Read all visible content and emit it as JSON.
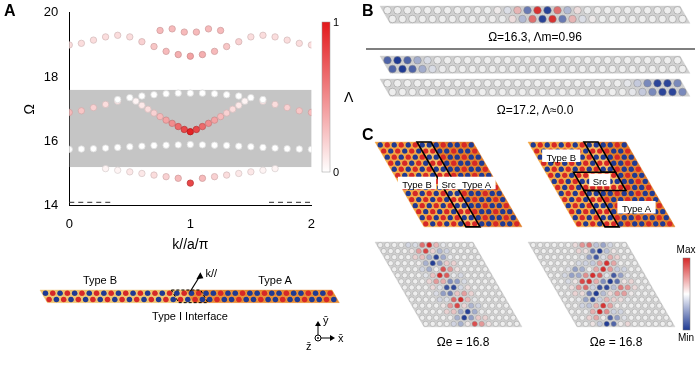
{
  "chart_data": {
    "type": "scatter",
    "panel_label": "A",
    "x_label": "k//a/π",
    "y_label": "Ω",
    "xlim": [
      0,
      2
    ],
    "xticks": [
      0,
      1,
      2
    ],
    "ylim": [
      14,
      20
    ],
    "yticks": [
      14,
      16,
      18,
      20
    ],
    "grid": false,
    "band": [
      15.2,
      17.6
    ],
    "colorbar": {
      "label": "Λ",
      "range": [
        0,
        1
      ],
      "ticks": [
        0,
        1
      ],
      "colors": [
        "#ffffff",
        "#e3191c"
      ]
    },
    "series": [
      {
        "marker": "circle",
        "x": [
          0,
          0.1,
          0.2,
          0.3,
          0.4,
          0.5,
          0.6,
          0.7,
          0.8,
          0.9,
          1.0,
          1.1,
          1.2,
          1.3,
          1.4,
          1.5,
          1.6,
          1.7,
          1.8,
          1.9,
          2.0
        ],
        "y": [
          15.75,
          15.76,
          15.77,
          15.79,
          15.81,
          15.83,
          15.85,
          15.87,
          15.88,
          15.89,
          15.9,
          15.89,
          15.88,
          15.87,
          15.85,
          15.83,
          15.81,
          15.79,
          15.77,
          15.76,
          15.75
        ],
        "lambda": [
          0,
          0,
          0,
          0,
          0,
          0,
          0,
          0,
          0,
          0,
          0,
          0,
          0,
          0,
          0,
          0,
          0,
          0,
          0,
          0,
          0
        ]
      },
      {
        "marker": "circle",
        "x": [
          0.4,
          0.5,
          0.6,
          0.7,
          0.8,
          0.9,
          1.0,
          1.1,
          1.2,
          1.3,
          1.4,
          1.5,
          1.6
        ],
        "y": [
          17.3,
          17.36,
          17.41,
          17.45,
          17.48,
          17.5,
          17.5,
          17.5,
          17.48,
          17.45,
          17.41,
          17.36,
          17.3
        ],
        "lambda": [
          0,
          0,
          0,
          0,
          0,
          0,
          0,
          0,
          0,
          0,
          0,
          0,
          0
        ]
      },
      {
        "marker": "circle",
        "x": [
          0,
          0.1,
          0.2,
          0.3,
          0.4,
          1.6,
          1.7,
          1.8,
          1.9,
          2.0
        ],
        "y": [
          16.9,
          16.95,
          17.05,
          17.15,
          17.25,
          17.25,
          17.15,
          17.05,
          16.95,
          16.9
        ],
        "lambda": [
          0.3,
          0.25,
          0.2,
          0.15,
          0.1,
          0.1,
          0.15,
          0.2,
          0.25,
          0.3
        ]
      },
      {
        "marker": "circle",
        "x": [
          0,
          0.1,
          0.2,
          0.3,
          0.4,
          0.5,
          0.6,
          0.7,
          0.8,
          0.9,
          1.0,
          1.1,
          1.2,
          1.3,
          1.4,
          1.5,
          1.6,
          1.7,
          1.8,
          1.9,
          2.0
        ],
        "y": [
          19.0,
          19.05,
          19.15,
          19.25,
          19.3,
          19.25,
          19.1,
          18.95,
          18.8,
          18.7,
          18.65,
          18.7,
          18.8,
          18.95,
          19.1,
          19.25,
          19.3,
          19.25,
          19.15,
          19.05,
          19.0
        ],
        "lambda": [
          0.15,
          0.15,
          0.15,
          0.15,
          0.15,
          0.15,
          0.2,
          0.25,
          0.3,
          0.35,
          0.4,
          0.35,
          0.3,
          0.25,
          0.2,
          0.15,
          0.15,
          0.15,
          0.15,
          0.15,
          0.15
        ]
      },
      {
        "marker": "circle",
        "x": [
          0.75,
          0.85,
          0.95,
          1.05,
          1.15,
          1.25
        ],
        "y": [
          19.45,
          19.5,
          19.4,
          19.4,
          19.5,
          19.45
        ],
        "lambda": [
          0.3,
          0.3,
          0.3,
          0.3,
          0.3,
          0.3
        ]
      },
      {
        "marker": "circle",
        "x": [
          0.3,
          0.4,
          0.5,
          0.6,
          0.7,
          0.8,
          0.9,
          1.0,
          1.1,
          1.2,
          1.3,
          1.4,
          1.5,
          1.6,
          1.7
        ],
        "y": [
          15.15,
          15.1,
          15.05,
          15.0,
          14.95,
          14.9,
          14.85,
          14.7,
          14.85,
          14.9,
          14.95,
          15.0,
          15.05,
          15.1,
          15.15
        ],
        "lambda": [
          0.05,
          0.05,
          0.1,
          0.1,
          0.15,
          0.2,
          0.3,
          0.8,
          0.3,
          0.2,
          0.15,
          0.1,
          0.1,
          0.05,
          0.05
        ]
      },
      {
        "marker": "circle",
        "x": [
          0.55,
          0.6,
          0.65,
          0.7,
          0.75,
          0.8,
          0.85,
          0.9,
          0.95,
          1.0,
          1.05,
          1.1,
          1.15,
          1.2,
          1.25,
          1.3,
          1.35,
          1.4,
          1.45
        ],
        "y": [
          17.25,
          17.12,
          17.0,
          16.88,
          16.77,
          16.66,
          16.56,
          16.46,
          16.37,
          16.3,
          16.37,
          16.46,
          16.56,
          16.66,
          16.77,
          16.88,
          17.0,
          17.12,
          17.25
        ],
        "lambda": [
          0.05,
          0.1,
          0.15,
          0.2,
          0.3,
          0.4,
          0.5,
          0.65,
          0.8,
          0.96,
          0.8,
          0.65,
          0.5,
          0.4,
          0.3,
          0.2,
          0.15,
          0.1,
          0.05
        ]
      },
      {
        "type": "line",
        "line_style": "dashed",
        "color": "#555555",
        "x": [
          0,
          0.35,
          1.0,
          1.65,
          2.0
        ],
        "y": [
          14.1,
          14.1,
          null,
          14.1,
          14.1
        ]
      }
    ]
  },
  "figure": {
    "schematic": {
      "labels": {
        "left": "Type B",
        "right": "Type A",
        "interface": "Type I Interface"
      },
      "k_label": "k//",
      "axis_labels": [
        "x̄",
        "ȳ",
        "z̄"
      ]
    },
    "panel_B": {
      "label": "B",
      "modes": [
        {
          "caption": "Ω=16.3, Λm=0.96"
        },
        {
          "caption": "Ω=17.2, Λ≈0.0"
        }
      ]
    },
    "panel_C": {
      "label": "C",
      "layouts": [
        {
          "left": "Type B",
          "source": "Src",
          "right": "Type A",
          "caption": "Ωe = 16.8"
        },
        {
          "left": "Type B",
          "source": "Src",
          "right": "Type A",
          "caption": "Ωe = 16.8"
        }
      ],
      "colorbar": {
        "max": "Max",
        "min": "Min"
      }
    }
  }
}
